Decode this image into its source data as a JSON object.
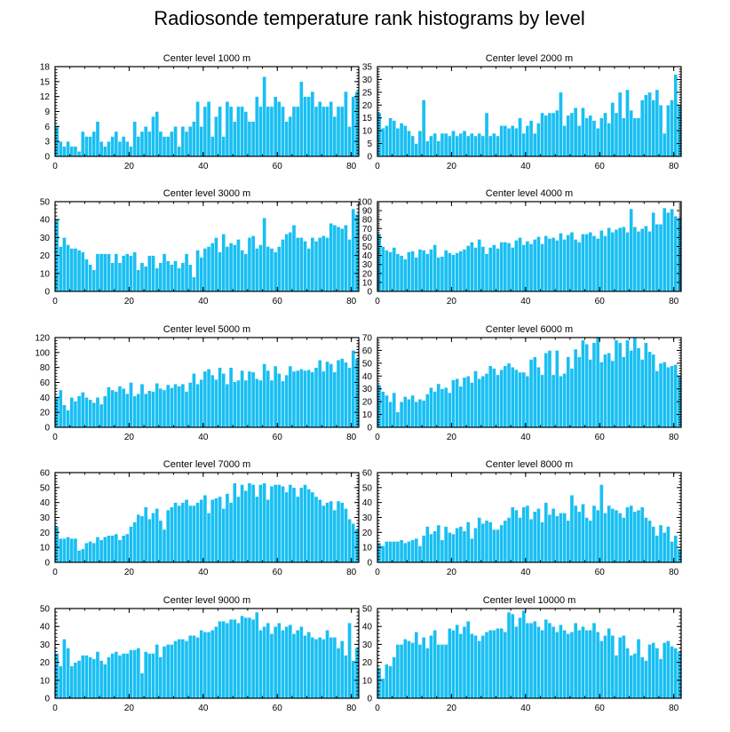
{
  "figure": {
    "title": "Radiosonde temperature rank histograms by level",
    "bar_color": "#19bff2"
  },
  "chart_data": [
    {
      "type": "bar",
      "title": "Center level 1000 m",
      "xlim": [
        0,
        82
      ],
      "ylim": [
        0,
        18
      ],
      "xticks": [
        0,
        20,
        40,
        60,
        80
      ],
      "yticks": [
        0,
        3,
        6,
        9,
        12,
        15,
        18
      ],
      "values": [
        6,
        3,
        2,
        3,
        2,
        2,
        1,
        5,
        4,
        4,
        5,
        7,
        3,
        2,
        3,
        4,
        5,
        3,
        4,
        3,
        2,
        7,
        4,
        5,
        6,
        5,
        8,
        9,
        5,
        4,
        4,
        5,
        6,
        2,
        6,
        5,
        6,
        7,
        11,
        6,
        10,
        11,
        4,
        8,
        10,
        4,
        11,
        10,
        7,
        10,
        10,
        9,
        7,
        7,
        12,
        10,
        16,
        10,
        10,
        12,
        11,
        10,
        7,
        8,
        10,
        10,
        15,
        12,
        12,
        13,
        10,
        11,
        10,
        10,
        11,
        8,
        10,
        10,
        13,
        6,
        12,
        13
      ]
    },
    {
      "type": "bar",
      "title": "Center level 2000 m",
      "xlim": [
        0,
        82
      ],
      "ylim": [
        0,
        35
      ],
      "xticks": [
        0,
        20,
        40,
        60,
        80
      ],
      "yticks": [
        0,
        5,
        10,
        15,
        20,
        25,
        30,
        35
      ],
      "values": [
        17,
        11,
        12,
        15,
        14,
        11,
        13,
        12,
        10,
        8,
        5,
        10,
        22,
        6,
        8,
        9,
        6,
        9,
        9,
        8,
        10,
        8,
        9,
        10,
        8,
        9,
        8,
        9,
        8,
        17,
        8,
        9,
        8,
        12,
        12,
        11,
        12,
        11,
        15,
        9,
        12,
        14,
        9,
        13,
        17,
        16,
        17,
        17,
        18,
        25,
        12,
        16,
        17,
        19,
        12,
        19,
        15,
        16,
        14,
        11,
        15,
        17,
        13,
        21,
        17,
        25,
        15,
        26,
        18,
        15,
        15,
        22,
        24,
        25,
        22,
        26,
        20,
        9,
        20,
        22,
        32,
        20
      ]
    },
    {
      "type": "bar",
      "title": "Center level 3000 m",
      "xlim": [
        0,
        82
      ],
      "ylim": [
        0,
        50
      ],
      "xticks": [
        0,
        20,
        40,
        60,
        80
      ],
      "yticks": [
        0,
        10,
        20,
        30,
        40,
        50
      ],
      "values": [
        40,
        25,
        30,
        26,
        24,
        24,
        23,
        22,
        18,
        15,
        12,
        21,
        21,
        21,
        21,
        16,
        21,
        16,
        20,
        21,
        20,
        22,
        12,
        16,
        14,
        20,
        20,
        13,
        16,
        21,
        17,
        15,
        17,
        13,
        16,
        21,
        15,
        8,
        23,
        19,
        24,
        25,
        27,
        30,
        22,
        32,
        25,
        27,
        26,
        29,
        23,
        21,
        30,
        31,
        24,
        26,
        41,
        25,
        24,
        22,
        25,
        29,
        32,
        33,
        37,
        30,
        30,
        28,
        24,
        30,
        28,
        30,
        31,
        30,
        38,
        37,
        36,
        35,
        37,
        29,
        46,
        43
      ]
    },
    {
      "type": "bar",
      "title": "Center level 4000 m",
      "xlim": [
        0,
        82
      ],
      "ylim": [
        0,
        100
      ],
      "xticks": [
        0,
        20,
        40,
        60,
        80
      ],
      "yticks": [
        0,
        10,
        20,
        30,
        40,
        50,
        60,
        70,
        80,
        90,
        100
      ],
      "values": [
        64,
        50,
        46,
        44,
        49,
        42,
        40,
        36,
        44,
        45,
        38,
        47,
        46,
        42,
        47,
        52,
        38,
        39,
        46,
        43,
        41,
        43,
        45,
        47,
        51,
        55,
        49,
        58,
        50,
        42,
        49,
        52,
        48,
        55,
        55,
        54,
        49,
        57,
        60,
        52,
        56,
        53,
        58,
        61,
        53,
        62,
        59,
        60,
        57,
        65,
        58,
        63,
        66,
        58,
        55,
        64,
        64,
        66,
        62,
        59,
        68,
        62,
        71,
        66,
        69,
        71,
        72,
        66,
        92,
        72,
        67,
        70,
        73,
        67,
        88,
        75,
        75,
        93,
        88,
        92,
        84,
        82
      ]
    },
    {
      "type": "bar",
      "title": "Center level 5000 m",
      "xlim": [
        0,
        82
      ],
      "ylim": [
        0,
        120
      ],
      "xticks": [
        0,
        20,
        40,
        60,
        80
      ],
      "yticks": [
        0,
        20,
        40,
        60,
        80,
        100,
        120
      ],
      "values": [
        40,
        50,
        30,
        23,
        40,
        35,
        42,
        47,
        40,
        37,
        33,
        40,
        31,
        42,
        54,
        50,
        48,
        55,
        52,
        45,
        60,
        42,
        45,
        58,
        45,
        49,
        48,
        59,
        52,
        50,
        57,
        53,
        58,
        55,
        58,
        48,
        60,
        72,
        58,
        64,
        75,
        78,
        70,
        64,
        80,
        72,
        58,
        80,
        61,
        63,
        76,
        63,
        75,
        74,
        65,
        63,
        85,
        76,
        63,
        82,
        72,
        62,
        70,
        82,
        75,
        76,
        78,
        76,
        77,
        74,
        80,
        90,
        75,
        88,
        85,
        74,
        90,
        92,
        87,
        80,
        103,
        92
      ]
    },
    {
      "type": "bar",
      "title": "Center level 6000 m",
      "xlim": [
        0,
        82
      ],
      "ylim": [
        0,
        70
      ],
      "xticks": [
        0,
        20,
        40,
        60,
        80
      ],
      "yticks": [
        0,
        10,
        20,
        30,
        40,
        50,
        60,
        70
      ],
      "values": [
        33,
        28,
        25,
        20,
        27,
        12,
        20,
        24,
        22,
        25,
        20,
        22,
        21,
        26,
        31,
        28,
        34,
        30,
        31,
        27,
        37,
        38,
        32,
        39,
        40,
        35,
        44,
        38,
        40,
        42,
        48,
        46,
        41,
        45,
        48,
        50,
        47,
        45,
        43,
        43,
        40,
        53,
        55,
        47,
        41,
        58,
        60,
        41,
        60,
        40,
        42,
        55,
        46,
        61,
        55,
        68,
        65,
        53,
        66,
        70,
        51,
        57,
        58,
        52,
        68,
        66,
        55,
        68,
        60,
        70,
        62,
        53,
        66,
        59,
        57,
        44,
        50,
        51,
        47,
        48,
        49,
        40
      ]
    },
    {
      "type": "bar",
      "title": "Center level 7000 m",
      "xlim": [
        0,
        82
      ],
      "ylim": [
        0,
        60
      ],
      "xticks": [
        0,
        20,
        40,
        60,
        80
      ],
      "yticks": [
        0,
        10,
        20,
        30,
        40,
        50,
        60
      ],
      "values": [
        24,
        16,
        16,
        17,
        16,
        16,
        8,
        9,
        13,
        14,
        13,
        17,
        15,
        17,
        18,
        18,
        19,
        15,
        18,
        19,
        24,
        27,
        32,
        31,
        37,
        29,
        33,
        36,
        28,
        22,
        35,
        37,
        40,
        38,
        40,
        42,
        38,
        38,
        40,
        42,
        45,
        33,
        42,
        43,
        44,
        36,
        46,
        40,
        53,
        44,
        52,
        48,
        53,
        52,
        44,
        52,
        53,
        42,
        51,
        52,
        52,
        51,
        47,
        52,
        50,
        44,
        50,
        52,
        49,
        47,
        44,
        42,
        38,
        40,
        41,
        35,
        41,
        40,
        36,
        29,
        26,
        22
      ]
    },
    {
      "type": "bar",
      "title": "Center level 8000 m",
      "xlim": [
        0,
        82
      ],
      "ylim": [
        0,
        60
      ],
      "xticks": [
        0,
        20,
        40,
        60,
        80
      ],
      "yticks": [
        0,
        10,
        20,
        30,
        40,
        50,
        60
      ],
      "values": [
        13,
        11,
        14,
        14,
        14,
        14,
        15,
        13,
        14,
        15,
        16,
        11,
        18,
        24,
        19,
        21,
        25,
        15,
        24,
        20,
        19,
        23,
        24,
        21,
        27,
        16,
        23,
        30,
        26,
        28,
        27,
        22,
        22,
        25,
        28,
        30,
        37,
        35,
        30,
        37,
        38,
        29,
        34,
        36,
        27,
        40,
        32,
        36,
        31,
        33,
        33,
        28,
        45,
        38,
        34,
        39,
        30,
        28,
        38,
        35,
        52,
        33,
        38,
        36,
        35,
        33,
        30,
        37,
        38,
        34,
        35,
        37,
        30,
        28,
        24,
        18,
        25,
        20,
        24,
        14,
        18,
        9
      ]
    },
    {
      "type": "bar",
      "title": "Center level 9000 m",
      "xlim": [
        0,
        82
      ],
      "ylim": [
        0,
        50
      ],
      "xticks": [
        0,
        20,
        40,
        60,
        80
      ],
      "yticks": [
        0,
        10,
        20,
        30,
        40,
        50
      ],
      "values": [
        25,
        18,
        33,
        28,
        18,
        20,
        21,
        24,
        24,
        23,
        22,
        26,
        21,
        19,
        23,
        25,
        26,
        24,
        25,
        25,
        27,
        27,
        28,
        14,
        26,
        25,
        25,
        30,
        23,
        29,
        30,
        30,
        32,
        33,
        33,
        32,
        35,
        35,
        34,
        38,
        37,
        37,
        38,
        40,
        43,
        43,
        42,
        44,
        44,
        42,
        46,
        45,
        45,
        44,
        48,
        38,
        40,
        42,
        36,
        40,
        42,
        38,
        40,
        41,
        36,
        38,
        40,
        35,
        37,
        34,
        33,
        34,
        33,
        38,
        34,
        34,
        28,
        32,
        24,
        42,
        21,
        28
      ]
    },
    {
      "type": "bar",
      "title": "Center level 10000 m",
      "xlim": [
        0,
        82
      ],
      "ylim": [
        0,
        50
      ],
      "xticks": [
        0,
        20,
        40,
        60,
        80
      ],
      "yticks": [
        0,
        10,
        20,
        30,
        40,
        50
      ],
      "values": [
        17,
        11,
        19,
        18,
        23,
        30,
        30,
        33,
        32,
        31,
        37,
        30,
        34,
        28,
        35,
        38,
        30,
        30,
        30,
        39,
        38,
        41,
        36,
        40,
        43,
        36,
        35,
        32,
        35,
        37,
        38,
        38,
        39,
        39,
        37,
        48,
        47,
        40,
        45,
        49,
        42,
        42,
        43,
        40,
        38,
        44,
        42,
        40,
        37,
        41,
        38,
        36,
        37,
        42,
        38,
        40,
        38,
        38,
        42,
        37,
        32,
        35,
        39,
        35,
        24,
        34,
        35,
        28,
        24,
        25,
        33,
        23,
        21,
        30,
        31,
        28,
        22,
        31,
        32,
        29,
        28,
        26
      ]
    }
  ]
}
